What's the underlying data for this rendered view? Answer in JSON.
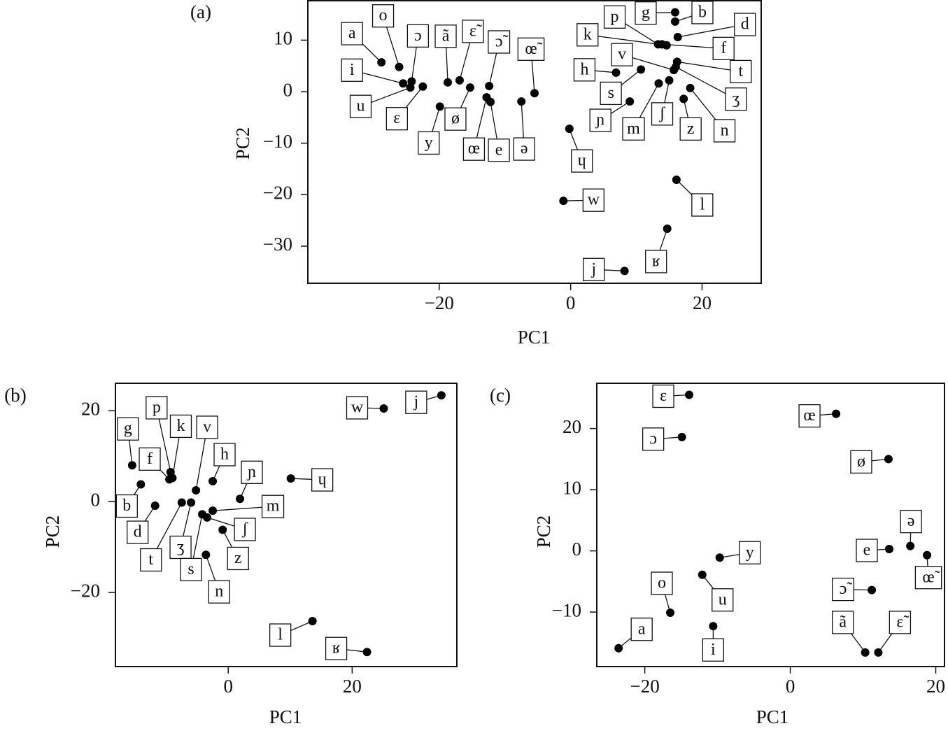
{
  "chart_data": [
    {
      "type": "scatter",
      "panel": "(a)",
      "xlabel": "PC1",
      "ylabel": "PC2",
      "color": "#000000",
      "xlim": [
        -40,
        29
      ],
      "ylim": [
        -37.2,
        17.8
      ],
      "xticks": [
        {
          "value": -20,
          "label": "−20"
        },
        0,
        20
      ],
      "yticks": [
        {
          "value": -30,
          "label": "−30"
        },
        {
          "value": -20,
          "label": "−20"
        },
        {
          "value": -10,
          "label": "−10"
        },
        0,
        10
      ],
      "point_labels": [
        "a",
        "o",
        "ɔ",
        "i",
        "u",
        "ɛ",
        "ã",
        "ɛ̃",
        "ɔ̃",
        "œ̃",
        "ø",
        "y",
        "œ",
        "e",
        "ə",
        "ɥ",
        "w",
        "j",
        "ʁ",
        "l",
        "p",
        "g",
        "b",
        "k",
        "d",
        "f",
        "t",
        "v",
        "ʒ",
        "h",
        "s",
        "ɲ",
        "m",
        "ʃ",
        "z",
        "n"
      ],
      "x": [
        -28.8,
        -26.1,
        -24.2,
        -25.5,
        -24.4,
        -22.5,
        -18.7,
        -16.9,
        -12.4,
        -5.5,
        -15.3,
        -19.9,
        -12.8,
        -12.2,
        -7.5,
        -0.2,
        -1.1,
        8.2,
        14.7,
        16.1,
        13.3,
        15.9,
        15.9,
        14.6,
        16.3,
        13.9,
        16.2,
        15.7,
        16.0,
        6.9,
        10.7,
        9.0,
        13.4,
        15.0,
        17.2,
        18.2
      ],
      "y": [
        5.7,
        4.8,
        2.0,
        1.6,
        0.8,
        1.0,
        1.8,
        2.2,
        1.1,
        -0.3,
        0.8,
        -2.9,
        -1.1,
        -2.0,
        -1.9,
        -7.2,
        -21.2,
        -34.8,
        -26.6,
        -17.1,
        9.2,
        15.4,
        13.6,
        9.0,
        10.6,
        9.2,
        5.8,
        4.2,
        4.8,
        3.7,
        4.3,
        -1.9,
        1.6,
        2.2,
        -1.4,
        0.7
      ]
    },
    {
      "type": "scatter",
      "panel": "(b)",
      "xlabel": "PC1",
      "ylabel": "PC2",
      "color": "#000000",
      "xlim": [
        -18.2,
        36.9
      ],
      "ylim": [
        -36.3,
        26.2
      ],
      "xticks": [
        0,
        20
      ],
      "yticks": [
        {
          "value": -20,
          "label": "−20"
        },
        0,
        20
      ],
      "point_labels": [
        "g",
        "b",
        "d",
        "f",
        "p",
        "k",
        "v",
        "t",
        "ʒ",
        "h",
        "s",
        "ɲ",
        "m",
        "ʃ",
        "z",
        "n",
        "ɥ",
        "w",
        "j",
        "l",
        "ʁ"
      ],
      "x": [
        -15.5,
        -14.1,
        -11.8,
        -9.5,
        -9.3,
        -9.0,
        -5.2,
        -7.5,
        -6.0,
        -2.5,
        -4.2,
        1.9,
        -2.5,
        -3.4,
        -0.9,
        -3.6,
        10.1,
        25.1,
        34.4,
        13.6,
        22.4
      ],
      "y": [
        8.0,
        3.8,
        -0.9,
        4.9,
        6.5,
        5.2,
        2.5,
        -0.2,
        -0.2,
        4.5,
        -2.8,
        0.6,
        -2.0,
        -3.5,
        -6.2,
        -11.7,
        5.1,
        20.5,
        23.4,
        -26.3,
        -33.1
      ]
    },
    {
      "type": "scatter",
      "panel": "(c)",
      "xlabel": "PC1",
      "ylabel": "PC2",
      "color": "#000000",
      "xlim": [
        -26.6,
        21.2
      ],
      "ylim": [
        -18.9,
        27.5
      ],
      "xticks": [
        {
          "value": -20,
          "label": "−20"
        },
        0,
        20
      ],
      "yticks": [
        {
          "value": -10,
          "label": "−10"
        },
        0,
        10,
        20
      ],
      "point_labels": [
        "ɛ",
        "ɔ",
        "œ",
        "ø",
        "y",
        "ə",
        "e",
        "œ̃",
        "u",
        "ɔ̃",
        "o",
        "i",
        "a",
        "ã",
        "ɛ̃"
      ],
      "x": [
        -13.9,
        -14.9,
        6.3,
        13.5,
        -9.7,
        16.5,
        13.6,
        18.8,
        -12.1,
        11.2,
        -16.5,
        -10.6,
        -23.6,
        10.3,
        12.1
      ],
      "y": [
        25.5,
        18.6,
        22.4,
        15.0,
        -1.1,
        0.8,
        0.3,
        -0.7,
        -3.9,
        -6.4,
        -10.1,
        -12.3,
        -15.9,
        -16.6,
        -16.6
      ]
    }
  ]
}
